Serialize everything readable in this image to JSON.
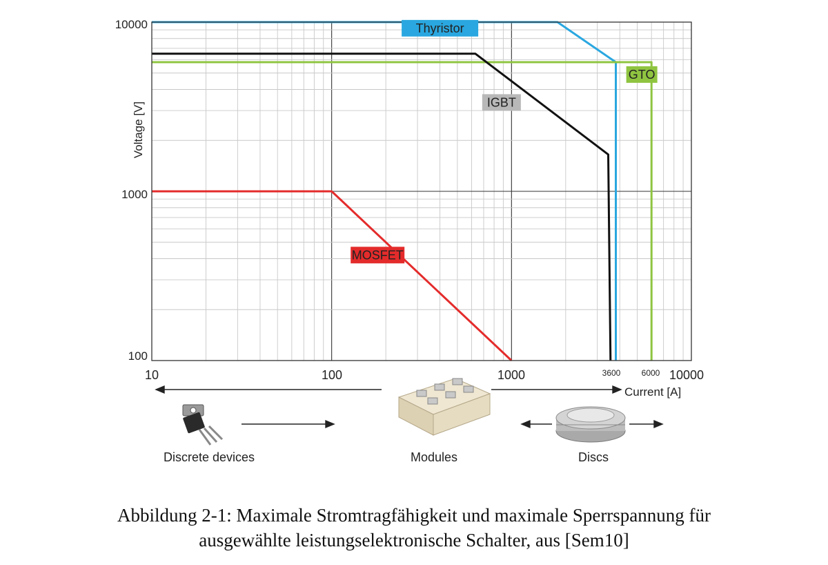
{
  "chart_data": {
    "type": "line",
    "x_scale": "log",
    "y_scale": "log",
    "xlim": [
      10,
      10000
    ],
    "ylim": [
      100,
      10000
    ],
    "xlabel": "Current [A]",
    "ylabel": "Voltage [V]",
    "grid": true,
    "x_ticks": [
      "10",
      "100",
      "1000",
      "10000"
    ],
    "x_ticks_extra": [
      "3600",
      "6000"
    ],
    "y_ticks": [
      "100",
      "1000",
      "10000"
    ],
    "series": [
      {
        "name": "Thyristor",
        "color": "#2aa7e0",
        "label_color": "#2aa7e0",
        "points": [
          [
            10,
            10000
          ],
          [
            1800,
            10000
          ],
          [
            3800,
            5800
          ],
          [
            3800,
            100
          ]
        ]
      },
      {
        "name": "GTO",
        "color": "#8fc440",
        "label_color": "#8fc440",
        "points": [
          [
            10,
            5800
          ],
          [
            6000,
            5800
          ],
          [
            6000,
            100
          ]
        ]
      },
      {
        "name": "IGBT",
        "color": "#111111",
        "label_color": "#b8b8b8",
        "points": [
          [
            10,
            6500
          ],
          [
            630,
            6500
          ],
          [
            3450,
            1650
          ],
          [
            3550,
            100
          ]
        ]
      },
      {
        "name": "MOSFET",
        "color": "#e42b2b",
        "label_color": "#e42b2b",
        "points": [
          [
            10,
            1000
          ],
          [
            100,
            1000
          ],
          [
            1000,
            100
          ]
        ]
      }
    ],
    "devices": [
      "Discrete devices",
      "Modules",
      "Discs"
    ]
  },
  "caption": {
    "line1": "Abbildung 2-1: Maximale Stromtragfähigkeit und maximale Sperrspannung für",
    "line2": "ausgewählte leistungselektronische Schalter, aus [Sem10]"
  }
}
